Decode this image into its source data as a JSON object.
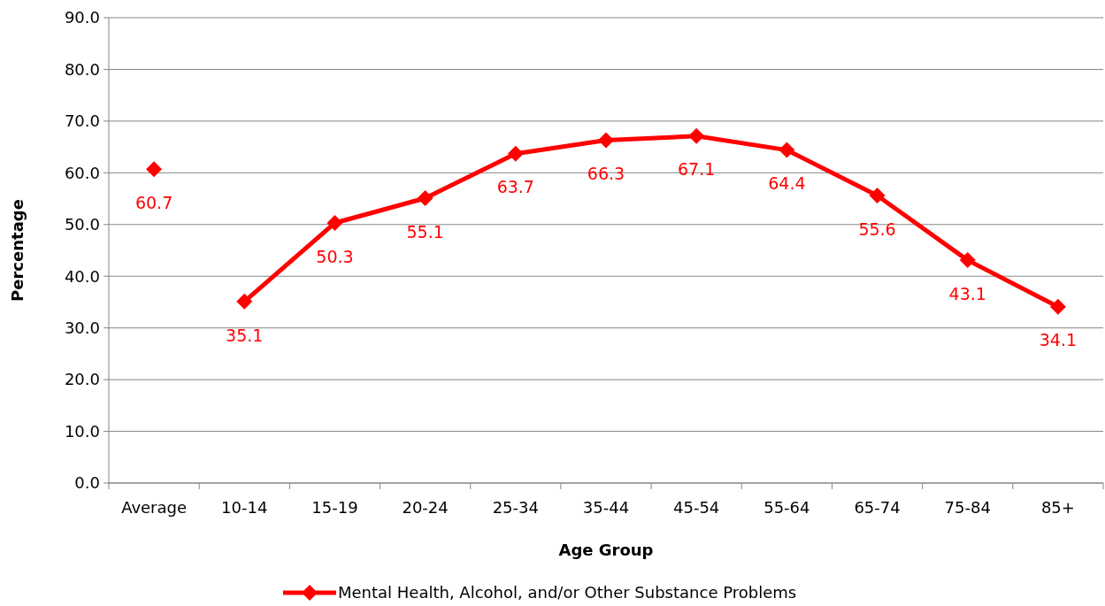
{
  "chart_data": {
    "type": "line",
    "xlabel": "Age Group",
    "ylabel": "Percentage",
    "categories": [
      "Average",
      "10-14",
      "15-19",
      "20-24",
      "25-34",
      "35-44",
      "45-54",
      "55-64",
      "65-74",
      "75-84",
      "85+"
    ],
    "series": [
      {
        "name": "Mental Health, Alcohol, and/or Other Substance Problems",
        "color": "#ff0000",
        "values": [
          null,
          35.1,
          50.3,
          55.1,
          63.7,
          66.3,
          67.1,
          64.4,
          55.6,
          43.1,
          34.1
        ]
      },
      {
        "type": "scatter",
        "color": "#ff0000",
        "values": [
          60.7,
          null,
          null,
          null,
          null,
          null,
          null,
          null,
          null,
          null,
          null
        ]
      }
    ],
    "ylim": [
      0,
      90
    ],
    "yticks": [
      {
        "value": 0,
        "label": "0.0"
      },
      {
        "value": 10,
        "label": "10.0"
      },
      {
        "value": 20,
        "label": "20.0"
      },
      {
        "value": 30,
        "label": "30.0"
      },
      {
        "value": 40,
        "label": "40.0"
      },
      {
        "value": 50,
        "label": "50.0"
      },
      {
        "value": 60,
        "label": "60.0"
      },
      {
        "value": 70,
        "label": "70.0"
      },
      {
        "value": 80,
        "label": "80.0"
      },
      {
        "value": 90,
        "label": "90.0"
      }
    ],
    "grid": "y",
    "legend": "bottom",
    "marker": "diamond",
    "line_style": "solid",
    "data_labels": true
  }
}
